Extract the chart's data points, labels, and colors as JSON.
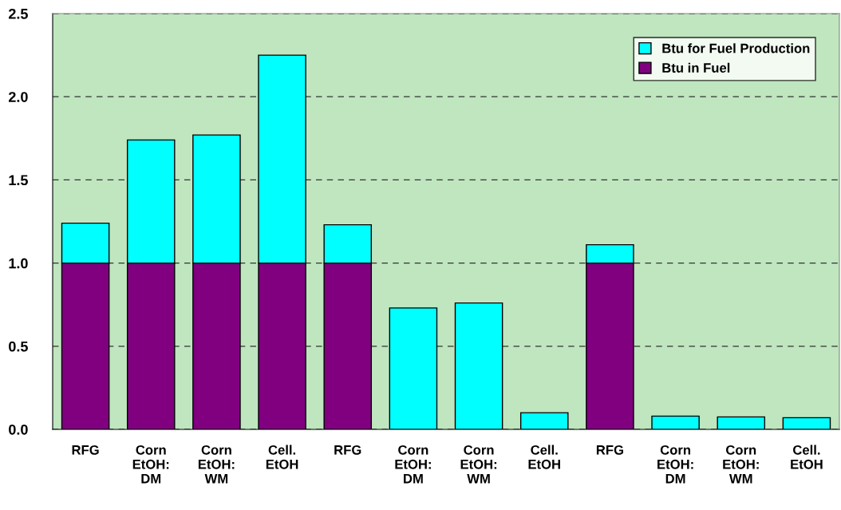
{
  "chart_data": {
    "type": "bar",
    "stacked": true,
    "categories": [
      "RFG",
      "Corn\nEtOH:\nDM",
      "Corn\nEtOH:\nWM",
      "Cell.\nEtOH",
      "RFG",
      "Corn\nEtOH:\nDM",
      "Corn\nEtOH:\nWM",
      "Cell.\nEtOH",
      "RFG",
      "Corn\nEtOH:\nDM",
      "Corn\nEtOH:\nWM",
      "Cell.\nEtOH"
    ],
    "series": [
      {
        "name": "Btu in Fuel",
        "color": "#800080",
        "values": [
          1.0,
          1.0,
          1.0,
          1.0,
          1.0,
          0,
          0,
          0,
          1.0,
          0,
          0,
          0
        ]
      },
      {
        "name": "Btu for Fuel Production",
        "color": "#00ffff",
        "values": [
          0.24,
          0.74,
          0.77,
          1.25,
          0.23,
          0.73,
          0.76,
          0.1,
          0.11,
          0.08,
          0.075,
          0.07
        ]
      }
    ],
    "ylim": [
      0,
      2.5
    ],
    "yticks": [
      {
        "value": 0,
        "label": "0.0"
      },
      {
        "value": 0.5,
        "label": "0.5"
      },
      {
        "value": 1.0,
        "label": "1.0"
      },
      {
        "value": 1.5,
        "label": "1.5"
      },
      {
        "value": 2.0,
        "label": "2.0"
      },
      {
        "value": 2.5,
        "label": "2.5"
      }
    ],
    "grid": "y",
    "legend": "top right"
  }
}
